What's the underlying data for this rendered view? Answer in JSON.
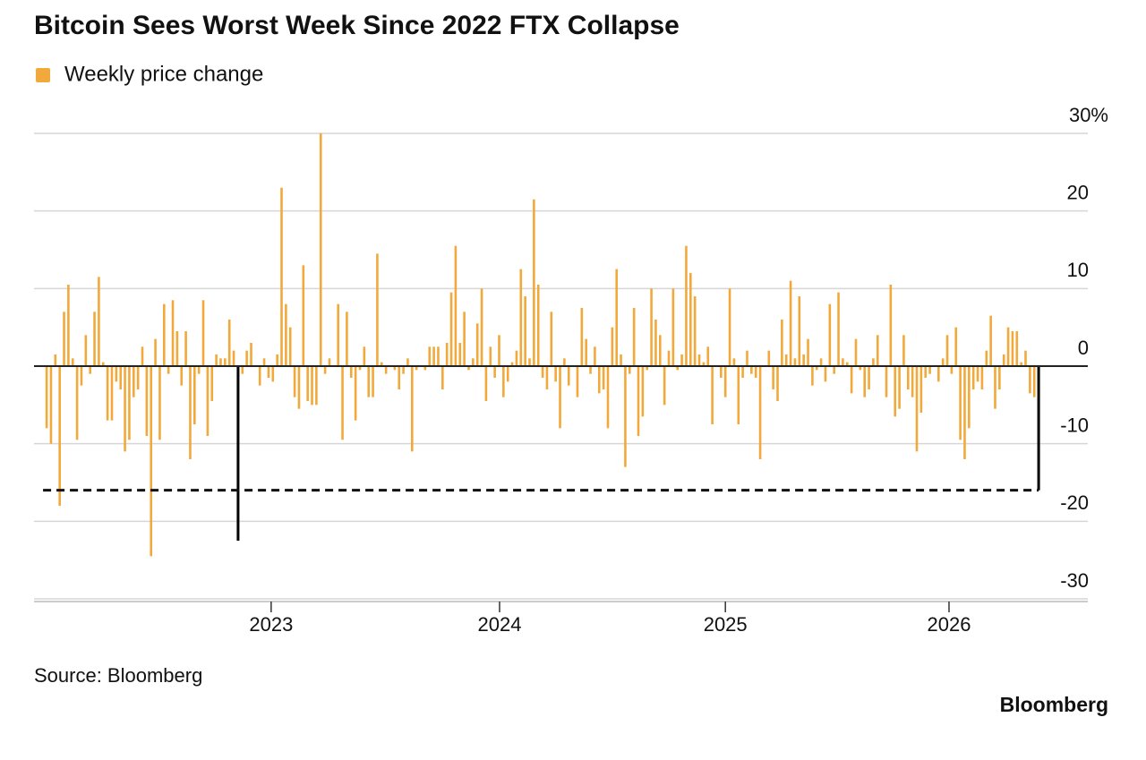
{
  "chart_data": {
    "type": "bar",
    "title": "Bitcoin Sees Worst Week Since 2022 FTX Collapse",
    "source": "Source: Bloomberg",
    "brand": "Bloomberg",
    "series": [
      {
        "name": "Weekly price change",
        "color": "#f2a93b",
        "values": [
          -8,
          -10,
          1.5,
          -18,
          7,
          10.5,
          1,
          -9.5,
          -2.5,
          4,
          -1,
          7,
          11.5,
          0.5,
          -7,
          -7,
          -2,
          -3,
          -11,
          -9.5,
          -4,
          -3,
          2.5,
          -9,
          -24.5,
          3.5,
          -9.5,
          8,
          -1,
          8.5,
          4.5,
          -2.5,
          4.5,
          -12,
          -7.5,
          -1,
          8.5,
          -9,
          -4.5,
          1.5,
          1,
          1,
          6,
          2,
          -22.5,
          -1,
          2,
          3,
          0,
          -2.5,
          1,
          -1.5,
          -2,
          1.5,
          23,
          8,
          5,
          -4,
          -5.5,
          13,
          -4.5,
          -5,
          -5,
          30,
          -1,
          1,
          0,
          8,
          -9.5,
          7,
          -1.5,
          -7,
          -0.5,
          2.5,
          -4,
          -4,
          14.5,
          0.5,
          -1,
          0,
          -0.5,
          -3,
          -1,
          1,
          -11,
          -0.5,
          0,
          -0.5,
          2.5,
          2.5,
          2.5,
          -3,
          3,
          9.5,
          15.5,
          3,
          7,
          -0.5,
          1,
          5.5,
          10,
          -4.5,
          2.5,
          -1.5,
          4,
          -4,
          -2,
          0.5,
          2,
          12.5,
          9,
          1,
          21.5,
          10.5,
          -1.5,
          -3,
          7,
          -2,
          -8,
          1,
          -2.5,
          0,
          -4,
          7.5,
          3.5,
          -1,
          2.5,
          -3.5,
          -3,
          -8,
          5,
          12.5,
          1.5,
          -13,
          -1,
          7.5,
          -9,
          -6.5,
          -0.5,
          10,
          6,
          4,
          -5,
          2,
          10,
          -0.5,
          1.5,
          15.5,
          12,
          9,
          1.5,
          0.5,
          2.5,
          -7.5,
          0,
          -1.5,
          -4,
          10,
          1,
          -7.5,
          -1.5,
          2,
          -1,
          -1.5,
          -12,
          0,
          2,
          -3,
          -4.5,
          6,
          1.5,
          11,
          1,
          9,
          1.5,
          3.5,
          -2.5,
          -0.5,
          1,
          -2,
          8,
          -1,
          9.5,
          1,
          0.5,
          -3.5,
          3.5,
          -0.5,
          -4,
          -3,
          1,
          4,
          0,
          -4,
          10.5,
          -6.5,
          -5.5,
          4,
          -3,
          -4,
          -11,
          -6,
          -1.5,
          -1,
          0,
          -2,
          1,
          4,
          -1,
          5,
          -9.5,
          -12,
          -8,
          -3,
          -2,
          -3,
          2,
          6.5,
          -5.5,
          -3,
          1.5,
          5,
          4.5,
          4.5,
          0.5,
          2,
          -3.5,
          -4,
          -16
        ]
      }
    ],
    "highlight": {
      "color": "#000000",
      "indices": [
        44,
        228
      ]
    },
    "xlim": [
      -2.9,
      239.3
    ],
    "xticks": [
      {
        "value": 51.6,
        "label": "2023"
      },
      {
        "value": 104.1,
        "label": "2024"
      },
      {
        "value": 156,
        "label": "2025"
      },
      {
        "value": 207.4,
        "label": "2026"
      }
    ],
    "ylim": [
      -30,
      30
    ],
    "yticks": [
      {
        "value": 30,
        "label": "30%"
      },
      20,
      10,
      0,
      -10,
      -20,
      -30
    ],
    "grid": true
  }
}
